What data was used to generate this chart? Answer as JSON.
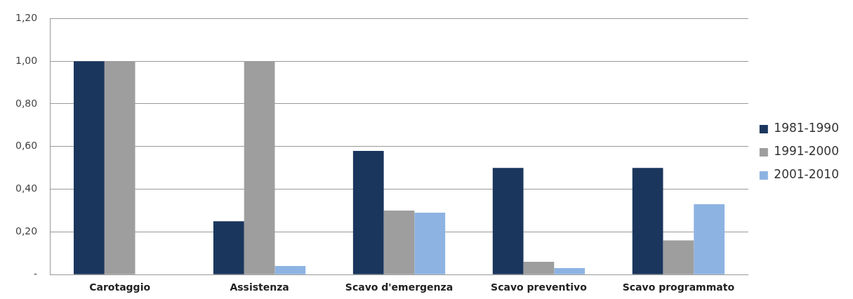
{
  "chart_data": {
    "type": "bar",
    "categories": [
      "Carotaggio",
      "Assistenza",
      "Scavo d'emergenza",
      "Scavo preventivo",
      "Scavo programmato"
    ],
    "series": [
      {
        "name": "1981-1990",
        "color": "#1b365d",
        "values": [
          1.0,
          0.25,
          0.58,
          0.5,
          0.5
        ]
      },
      {
        "name": "1991-2000",
        "color": "#9e9e9e",
        "values": [
          1.0,
          1.0,
          0.3,
          0.06,
          0.16
        ]
      },
      {
        "name": "2001-2010",
        "color": "#8db3e2",
        "values": [
          0,
          0.04,
          0.29,
          0.03,
          0.33
        ]
      }
    ],
    "ylim": [
      0,
      1.2
    ],
    "yticks": [
      {
        "value": 0,
        "label": "-"
      },
      {
        "value": 0.2,
        "label": "0,20"
      },
      {
        "value": 0.4,
        "label": "0,40"
      },
      {
        "value": 0.6,
        "label": "0,60"
      },
      {
        "value": 0.8,
        "label": "0,80"
      },
      {
        "value": 1.0,
        "label": "1,00"
      },
      {
        "value": 1.2,
        "label": "1,20"
      }
    ],
    "grid": "y",
    "legend": "right"
  }
}
